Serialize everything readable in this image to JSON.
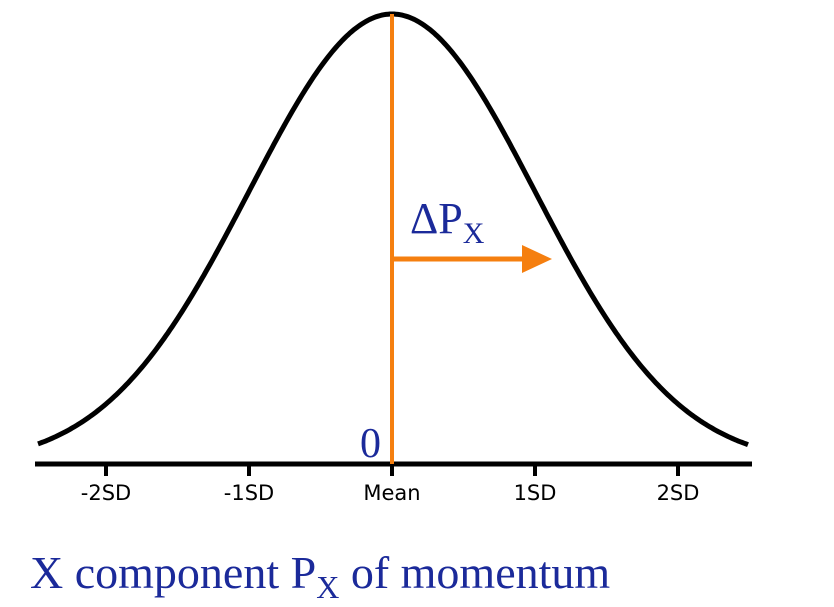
{
  "axis": {
    "tick_labels": [
      "-2SD",
      "-1SD",
      "Mean",
      "1SD",
      "2SD"
    ]
  },
  "origin_label": "0",
  "delta_label": {
    "main": "ΔP",
    "subscript": "X"
  },
  "caption": {
    "before": "X component P",
    "subscript": "X",
    "after": " of momentum"
  }
}
